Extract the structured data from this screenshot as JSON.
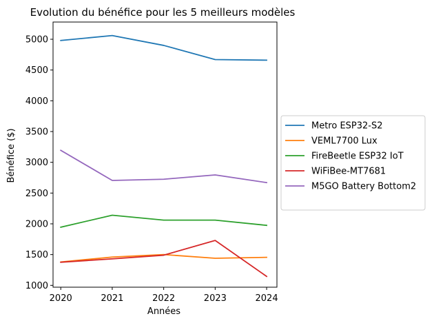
{
  "chart_data": {
    "type": "line",
    "title": "Evolution du bénéfice pour les 5 meilleurs modèles",
    "xlabel": "Années",
    "ylabel": "Bénéfice ($)",
    "x": [
      2020,
      2021,
      2022,
      2023,
      2024
    ],
    "x_ticks": [
      "2020",
      "2021",
      "2022",
      "2023",
      "2024"
    ],
    "y_ticks": [
      1000,
      1500,
      2000,
      2500,
      3000,
      3500,
      4000,
      4500,
      5000
    ],
    "xlim": [
      2019.85,
      2024.2
    ],
    "ylim": [
      970,
      5280
    ],
    "grid": false,
    "legend_position": "outside-right",
    "series": [
      {
        "name": "Metro ESP32-S2",
        "color": "#1f77b4",
        "values": [
          4980,
          5060,
          4900,
          4670,
          4660
        ]
      },
      {
        "name": "VEML7700 Lux",
        "color": "#ff7f0e",
        "values": [
          1380,
          1460,
          1500,
          1440,
          1455
        ]
      },
      {
        "name": "FireBeetle ESP32 IoT",
        "color": "#2ca02c",
        "values": [
          1945,
          2140,
          2060,
          2060,
          1975
        ]
      },
      {
        "name": "WiFiBee-MT7681",
        "color": "#d62728",
        "values": [
          1375,
          1430,
          1490,
          1730,
          1145
        ]
      },
      {
        "name": "M5GO Battery Bottom2",
        "color": "#9467bd",
        "values": [
          3195,
          2705,
          2725,
          2795,
          2670
        ]
      }
    ]
  }
}
